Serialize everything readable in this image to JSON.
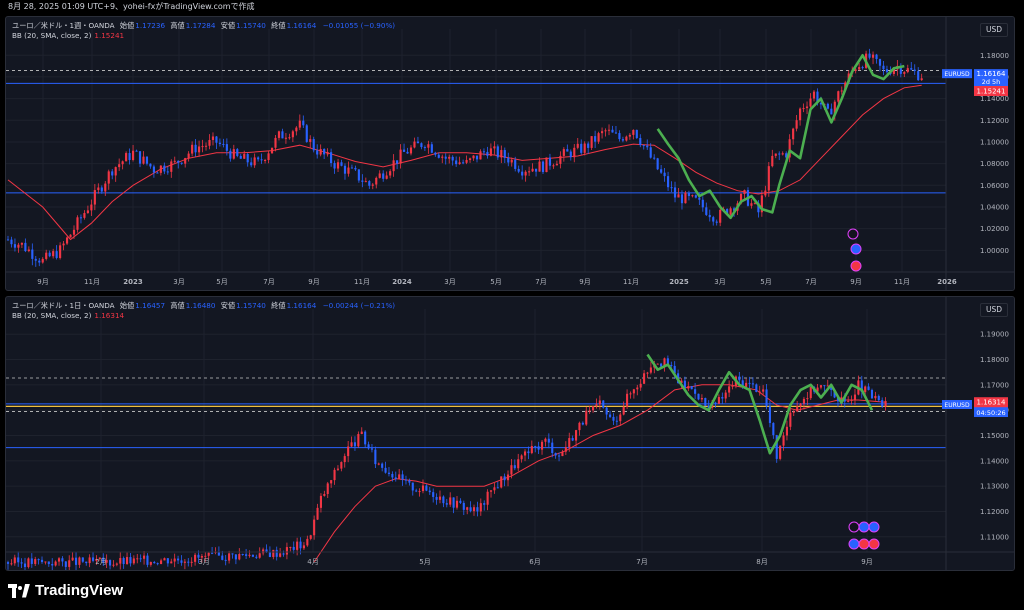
{
  "header": {
    "text": "8月 28, 2025 01:09 UTC+9、yohei-fxがTradingView.comで作成"
  },
  "footer": {
    "logo_text": "TradingView"
  },
  "colors": {
    "bull": "#f23645",
    "bear": "#2962ff",
    "bb_basis": "#f23645",
    "hline": "#2962ff",
    "ribbon": "#4caf50",
    "dash_line": "#f0c040",
    "background": "#131722"
  },
  "chart_data": [
    {
      "type": "candlestick",
      "legend": {
        "symbol": "ユーロ／米ドル・1週・OANDA",
        "open_label": "始値",
        "open": "1.17236",
        "high_label": "高値",
        "high": "1.17284",
        "low_label": "安値",
        "low": "1.15740",
        "close_label": "終値",
        "close": "1.16164",
        "change": "−0.01055 (−0.90%)",
        "indicator": "BB (20, SMA, close, 2)",
        "indicator_value": "1.15241"
      },
      "currency": "USD",
      "ylim": [
        0.98,
        1.195
      ],
      "y_ticks": [
        "1.18000",
        "1.16000",
        "1.14000",
        "1.12000",
        "1.10000",
        "1.08000",
        "1.06000",
        "1.04000",
        "1.02000",
        "1.00000"
      ],
      "y_tick_values": [
        1.18,
        1.16,
        1.14,
        1.12,
        1.1,
        1.08,
        1.06,
        1.04,
        1.02,
        1.0
      ],
      "x_ticks": [
        "9月",
        "11月",
        "2023",
        "3月",
        "5月",
        "7月",
        "9月",
        "11月",
        "2024",
        "3月",
        "5月",
        "7月",
        "9月",
        "11月",
        "2025",
        "3月",
        "5月",
        "7月",
        "9月",
        "11月",
        "2026"
      ],
      "x_tick_bold": [
        "2023",
        "2024",
        "2025",
        "2026"
      ],
      "horizontal_lines": [
        1.154,
        1.053
      ],
      "dashed_lines": [
        1.166
      ],
      "price_label": {
        "name": "EURUSD",
        "price": "1.16164",
        "countdown": "2d 5h",
        "value": 1.16164
      },
      "bb_label": {
        "price": "1.15241",
        "value": 1.15241
      },
      "close_path": [
        [
          0,
          1.01
        ],
        [
          4,
          1.005
        ],
        [
          10,
          0.99
        ],
        [
          15,
          1.0
        ],
        [
          20,
          1.025
        ],
        [
          25,
          1.05
        ],
        [
          30,
          1.075
        ],
        [
          36,
          1.09
        ],
        [
          42,
          1.075
        ],
        [
          48,
          1.08
        ],
        [
          54,
          1.095
        ],
        [
          60,
          1.1
        ],
        [
          66,
          1.085
        ],
        [
          72,
          1.08
        ],
        [
          78,
          1.105
        ],
        [
          84,
          1.115
        ],
        [
          88,
          1.095
        ],
        [
          94,
          1.08
        ],
        [
          100,
          1.07
        ],
        [
          104,
          1.06
        ],
        [
          108,
          1.072
        ],
        [
          114,
          1.09
        ],
        [
          120,
          1.1
        ],
        [
          126,
          1.085
        ],
        [
          132,
          1.08
        ],
        [
          138,
          1.093
        ],
        [
          144,
          1.085
        ],
        [
          148,
          1.075
        ],
        [
          154,
          1.078
        ],
        [
          160,
          1.088
        ],
        [
          166,
          1.095
        ],
        [
          172,
          1.11
        ],
        [
          176,
          1.103
        ],
        [
          180,
          1.113
        ],
        [
          186,
          1.08
        ],
        [
          192,
          1.05
        ],
        [
          198,
          1.045
        ],
        [
          204,
          1.03
        ],
        [
          208,
          1.04
        ],
        [
          212,
          1.05
        ],
        [
          216,
          1.035
        ],
        [
          220,
          1.085
        ],
        [
          224,
          1.09
        ],
        [
          228,
          1.13
        ],
        [
          232,
          1.145
        ],
        [
          236,
          1.125
        ],
        [
          240,
          1.15
        ],
        [
          244,
          1.17
        ],
        [
          248,
          1.178
        ],
        [
          252,
          1.165
        ],
        [
          256,
          1.17
        ],
        [
          260,
          1.165
        ],
        [
          263,
          1.16164
        ]
      ],
      "bb_basis_path": [
        [
          0,
          1.065
        ],
        [
          10,
          1.04
        ],
        [
          18,
          1.01
        ],
        [
          24,
          1.025
        ],
        [
          30,
          1.045
        ],
        [
          36,
          1.06
        ],
        [
          44,
          1.075
        ],
        [
          52,
          1.085
        ],
        [
          60,
          1.09
        ],
        [
          68,
          1.09
        ],
        [
          76,
          1.092
        ],
        [
          84,
          1.097
        ],
        [
          92,
          1.09
        ],
        [
          100,
          1.082
        ],
        [
          108,
          1.077
        ],
        [
          116,
          1.083
        ],
        [
          124,
          1.09
        ],
        [
          132,
          1.09
        ],
        [
          140,
          1.088
        ],
        [
          148,
          1.083
        ],
        [
          156,
          1.085
        ],
        [
          164,
          1.087
        ],
        [
          172,
          1.093
        ],
        [
          180,
          1.098
        ],
        [
          186,
          1.097
        ],
        [
          192,
          1.085
        ],
        [
          198,
          1.072
        ],
        [
          204,
          1.062
        ],
        [
          210,
          1.055
        ],
        [
          216,
          1.052
        ],
        [
          222,
          1.055
        ],
        [
          228,
          1.065
        ],
        [
          234,
          1.085
        ],
        [
          240,
          1.105
        ],
        [
          246,
          1.125
        ],
        [
          252,
          1.14
        ],
        [
          258,
          1.15
        ],
        [
          263,
          1.15241
        ]
      ],
      "ribbon_path": [
        [
          187,
          1.112
        ],
        [
          190,
          1.098
        ],
        [
          193,
          1.085
        ],
        [
          196,
          1.065
        ],
        [
          199,
          1.05
        ],
        [
          202,
          1.055
        ],
        [
          205,
          1.04
        ],
        [
          208,
          1.03
        ],
        [
          211,
          1.045
        ],
        [
          214,
          1.05
        ],
        [
          217,
          1.038
        ],
        [
          220,
          1.035
        ],
        [
          222,
          1.06
        ],
        [
          225,
          1.092
        ],
        [
          228,
          1.085
        ],
        [
          231,
          1.13
        ],
        [
          234,
          1.14
        ],
        [
          237,
          1.118
        ],
        [
          240,
          1.14
        ],
        [
          243,
          1.165
        ],
        [
          246,
          1.18
        ],
        [
          249,
          1.162
        ],
        [
          252,
          1.158
        ],
        [
          255,
          1.168
        ],
        [
          258,
          1.17
        ]
      ],
      "x_count": 270
    },
    {
      "type": "candlestick",
      "legend": {
        "symbol": "ユーロ／米ドル・1日・OANDA",
        "open_label": "始値",
        "open": "1.16457",
        "high_label": "高値",
        "high": "1.16480",
        "low_label": "安値",
        "low": "1.15740",
        "close_label": "終値",
        "close": "1.16164",
        "change": "−0.00244 (−0.21%)",
        "indicator": "BB (20, SMA, close, 2)",
        "indicator_value": "1.16314"
      },
      "currency": "USD",
      "ylim": [
        1.104,
        1.196
      ],
      "y_ticks": [
        "1.19000",
        "1.18000",
        "1.17000",
        "1.16000",
        "1.15000",
        "1.14000",
        "1.13000",
        "1.12000",
        "1.11000"
      ],
      "y_tick_values": [
        1.19,
        1.18,
        1.17,
        1.16,
        1.15,
        1.14,
        1.13,
        1.12,
        1.11
      ],
      "x_ticks": [
        "2月",
        "3月",
        "4月",
        "5月",
        "6月",
        "7月",
        "8月",
        "9月"
      ],
      "x_tick_bold": [],
      "horizontal_lines": [
        1.1625,
        1.1452
      ],
      "dashed_lines": [
        1.1727,
        1.1595
      ],
      "yellow_line": 1.1615,
      "price_label": {
        "name": "EURUSD",
        "price": "1.16164",
        "countdown": "04:50:26",
        "value": 1.16164
      },
      "bb_label": {
        "price": "1.16314",
        "value": 1.16314
      },
      "close_path": [
        [
          0,
          1.1
        ],
        [
          30,
          1.1
        ],
        [
          60,
          1.102
        ],
        [
          80,
          1.104
        ],
        [
          88,
          1.108
        ],
        [
          92,
          1.125
        ],
        [
          96,
          1.135
        ],
        [
          100,
          1.145
        ],
        [
          104,
          1.15
        ],
        [
          108,
          1.14
        ],
        [
          112,
          1.136
        ],
        [
          118,
          1.13
        ],
        [
          124,
          1.128
        ],
        [
          128,
          1.125
        ],
        [
          134,
          1.122
        ],
        [
          138,
          1.12
        ],
        [
          142,
          1.128
        ],
        [
          146,
          1.134
        ],
        [
          150,
          1.14
        ],
        [
          154,
          1.144
        ],
        [
          158,
          1.148
        ],
        [
          162,
          1.142
        ],
        [
          166,
          1.15
        ],
        [
          170,
          1.158
        ],
        [
          174,
          1.162
        ],
        [
          178,
          1.155
        ],
        [
          182,
          1.165
        ],
        [
          186,
          1.172
        ],
        [
          190,
          1.18
        ],
        [
          194,
          1.178
        ],
        [
          198,
          1.17
        ],
        [
          202,
          1.168
        ],
        [
          206,
          1.16
        ],
        [
          210,
          1.165
        ],
        [
          214,
          1.172
        ],
        [
          218,
          1.17
        ],
        [
          222,
          1.168
        ],
        [
          224,
          1.155
        ],
        [
          226,
          1.142
        ],
        [
          228,
          1.148
        ],
        [
          230,
          1.16
        ],
        [
          234,
          1.165
        ],
        [
          238,
          1.17
        ],
        [
          242,
          1.168
        ],
        [
          246,
          1.162
        ],
        [
          250,
          1.17
        ],
        [
          254,
          1.165
        ],
        [
          258,
          1.16164
        ]
      ],
      "bb_basis_path": [
        [
          90,
          1.1
        ],
        [
          96,
          1.112
        ],
        [
          102,
          1.122
        ],
        [
          108,
          1.13
        ],
        [
          114,
          1.133
        ],
        [
          120,
          1.132
        ],
        [
          126,
          1.13
        ],
        [
          132,
          1.13
        ],
        [
          140,
          1.13
        ],
        [
          148,
          1.134
        ],
        [
          156,
          1.14
        ],
        [
          164,
          1.144
        ],
        [
          172,
          1.15
        ],
        [
          180,
          1.154
        ],
        [
          188,
          1.16
        ],
        [
          196,
          1.168
        ],
        [
          204,
          1.17
        ],
        [
          212,
          1.17
        ],
        [
          220,
          1.168
        ],
        [
          226,
          1.162
        ],
        [
          232,
          1.16
        ],
        [
          238,
          1.162
        ],
        [
          244,
          1.164
        ],
        [
          250,
          1.164
        ],
        [
          258,
          1.16314
        ]
      ],
      "ribbon_path": [
        [
          188,
          1.182
        ],
        [
          191,
          1.176
        ],
        [
          194,
          1.178
        ],
        [
          197,
          1.172
        ],
        [
          200,
          1.166
        ],
        [
          203,
          1.162
        ],
        [
          206,
          1.16
        ],
        [
          209,
          1.168
        ],
        [
          212,
          1.175
        ],
        [
          215,
          1.17
        ],
        [
          218,
          1.168
        ],
        [
          221,
          1.156
        ],
        [
          224,
          1.143
        ],
        [
          227,
          1.15
        ],
        [
          230,
          1.162
        ],
        [
          233,
          1.168
        ],
        [
          236,
          1.17
        ],
        [
          239,
          1.165
        ],
        [
          242,
          1.17
        ],
        [
          245,
          1.163
        ],
        [
          248,
          1.17
        ],
        [
          251,
          1.168
        ],
        [
          254,
          1.16
        ]
      ],
      "x_count": 264
    }
  ]
}
